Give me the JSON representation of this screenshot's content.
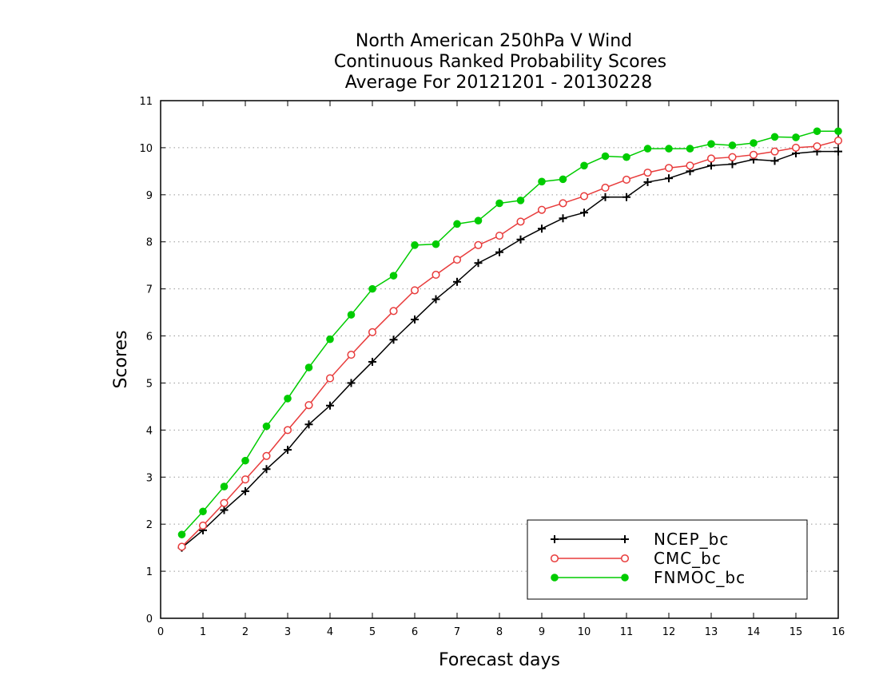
{
  "chart_data": {
    "type": "line",
    "title": [
      "North American 250hPa V Wind",
      "Continuous Ranked Probability Scores",
      "Average For 20121201 - 20130228"
    ],
    "xlabel": "Forecast days",
    "ylabel": "Scores",
    "xlim": [
      0,
      16
    ],
    "ylim": [
      0,
      11
    ],
    "xticks": [
      "0",
      "1",
      "2",
      "3",
      "4",
      "5",
      "6",
      "7",
      "8",
      "9",
      "10",
      "11",
      "12",
      "13",
      "14",
      "15",
      "16"
    ],
    "yticks": [
      "0",
      "1",
      "2",
      "3",
      "4",
      "5",
      "6",
      "7",
      "8",
      "9",
      "10",
      "11"
    ],
    "grid": "horizontal dotted",
    "legend_position": "bottom-right",
    "x": [
      0.5,
      1,
      1.5,
      2,
      2.5,
      3,
      3.5,
      4,
      4.5,
      5,
      5.5,
      6,
      6.5,
      7,
      7.5,
      8,
      8.5,
      9,
      9.5,
      10,
      10.5,
      11,
      11.5,
      12,
      12.5,
      13,
      13.5,
      14,
      14.5,
      15,
      15.5,
      16
    ],
    "series": [
      {
        "name": "NCEP_bc",
        "color": "#000000",
        "marker": "plus",
        "values": [
          1.5,
          1.87,
          2.3,
          2.7,
          3.17,
          3.58,
          4.12,
          4.52,
          5.0,
          5.45,
          5.92,
          6.35,
          6.78,
          7.15,
          7.55,
          7.78,
          8.05,
          8.28,
          8.5,
          8.62,
          8.95,
          8.95,
          9.27,
          9.35,
          9.5,
          9.62,
          9.65,
          9.75,
          9.72,
          9.88,
          9.92,
          9.92
        ]
      },
      {
        "name": "CMC_bc",
        "color": "#e83c3c",
        "marker": "open-circle",
        "values": [
          1.52,
          1.97,
          2.45,
          2.95,
          3.45,
          4.0,
          4.53,
          5.1,
          5.6,
          6.08,
          6.53,
          6.97,
          7.3,
          7.62,
          7.93,
          8.13,
          8.43,
          8.68,
          8.82,
          8.97,
          9.15,
          9.32,
          9.47,
          9.57,
          9.62,
          9.77,
          9.8,
          9.85,
          9.92,
          10.0,
          10.03,
          10.15
        ]
      },
      {
        "name": "FNMOC_bc",
        "color": "#00cc00",
        "marker": "filled-circle",
        "values": [
          1.78,
          2.27,
          2.8,
          3.35,
          4.08,
          4.67,
          5.33,
          5.93,
          6.45,
          7.0,
          7.28,
          7.93,
          7.95,
          8.38,
          8.45,
          8.82,
          8.88,
          9.28,
          9.33,
          9.62,
          9.82,
          9.8,
          9.98,
          9.98,
          9.98,
          10.08,
          10.05,
          10.1,
          10.23,
          10.22,
          10.35,
          10.35
        ]
      }
    ]
  }
}
